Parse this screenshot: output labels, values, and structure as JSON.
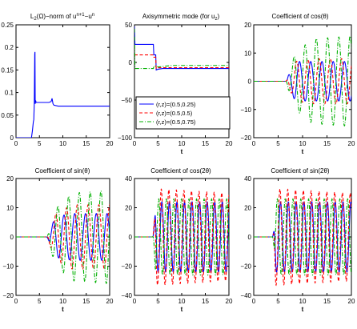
{
  "chart_data": [
    {
      "type": "line",
      "title": "L2(Ω)−norm of un+1−un",
      "title_parts": {
        "a": "L",
        "a_sub": "2",
        "b": "(Ω)−norm of u",
        "b_sup": "n+1",
        "c": "−u",
        "c_sup": "n"
      },
      "xlabel": "",
      "xlim": [
        0,
        20
      ],
      "ylim": [
        0,
        0.25
      ],
      "xticks": [
        "0",
        "5",
        "10",
        "15",
        "20"
      ],
      "yticks": [
        "0",
        "0.05",
        "0.1",
        "0.15",
        "0.2",
        "0.25"
      ],
      "series": [
        {
          "color": "#0000ff",
          "dash": "solid",
          "x": [
            0,
            3.3,
            3.5,
            3.7,
            3.8,
            3.9,
            4.0,
            4.05,
            4.1,
            4.15,
            4.2,
            4.25,
            4.3,
            5,
            6,
            7,
            7.5,
            7.7,
            7.9,
            8.1,
            9,
            12,
            15,
            20
          ],
          "y": [
            0,
            0,
            0.015,
            0.035,
            0.04,
            0.075,
            0.185,
            0.19,
            0.075,
            0.08,
            0.078,
            0.08,
            0.078,
            0.078,
            0.078,
            0.078,
            0.08,
            0.087,
            0.075,
            0.072,
            0.07,
            0.07,
            0.07,
            0.07
          ]
        }
      ]
    },
    {
      "type": "line",
      "title": "Axisymmetric mode (for uz)",
      "title_parts": {
        "a": "Axisymmetric mode (for u",
        "a_sub": "z",
        "b": ")"
      },
      "xlabel": "t",
      "xlim": [
        0,
        20
      ],
      "ylim": [
        -100,
        50
      ],
      "xticks": [
        "0",
        "5",
        "10",
        "15",
        "20"
      ],
      "yticks": [
        "−100",
        "−50",
        "0",
        "50"
      ],
      "legend": {
        "position": "lower-right",
        "entries": [
          "(r,z)=(0.5,0.25)",
          "(r,z)=(0.5,0.5)",
          "(r,z)=(0.5,0.75)"
        ]
      },
      "series": [
        {
          "name": "(r,z)=(0.5,0.25)",
          "color": "#0000ff",
          "dash": "solid",
          "x": [
            0,
            0.1,
            4.0,
            4.1,
            4.5,
            4.6,
            5.0,
            6.0,
            8.0,
            10,
            15,
            20
          ],
          "y": [
            48,
            24,
            24,
            10,
            10,
            -10,
            -9,
            -8,
            -8,
            -8,
            -8,
            -8
          ]
        },
        {
          "name": "(r,z)=(0.5,0.5)",
          "color": "#ff0000",
          "dash": "dashed",
          "x": [
            0,
            0.1,
            4.0,
            4.1,
            4.5,
            4.6,
            5.0,
            8.0,
            10,
            15,
            20
          ],
          "y": [
            10,
            10,
            10,
            7,
            7,
            -8,
            -7,
            -7,
            -7,
            -7,
            -7
          ]
        },
        {
          "name": "(r,z)=(0.5,0.75)",
          "color": "#00b000",
          "dash": "dashdot",
          "x": [
            0,
            0.1,
            4.0,
            4.1,
            4.6,
            5.0,
            8.0,
            10,
            15,
            20
          ],
          "y": [
            45,
            -8,
            -8,
            -5,
            -5,
            -6,
            -4,
            -4,
            -4,
            -4
          ]
        }
      ]
    },
    {
      "type": "line",
      "title": "Coefficient of cos(θ)",
      "xlabel": "t",
      "xlim": [
        0,
        20
      ],
      "ylim": [
        -20,
        20
      ],
      "xticks": [
        "0",
        "5",
        "10",
        "15",
        "20"
      ],
      "yticks": [
        "−20",
        "−10",
        "0",
        "10",
        "20"
      ],
      "series": [
        {
          "color": "#0000ff",
          "dash": "solid",
          "onset": 6.5,
          "period": 2.3,
          "phase": 0.0,
          "amp_points": [
            [
              6.5,
              0
            ],
            [
              8.5,
              7
            ],
            [
              12,
              7
            ],
            [
              20,
              7
            ]
          ]
        },
        {
          "color": "#ff0000",
          "dash": "dashed",
          "onset": 6.5,
          "period": 2.3,
          "phase": 1.6,
          "amp_points": [
            [
              6.5,
              0
            ],
            [
              8.5,
              7
            ],
            [
              12,
              8
            ],
            [
              20,
              8
            ]
          ]
        },
        {
          "color": "#00b000",
          "dash": "dashdot",
          "onset": 6.5,
          "period": 2.3,
          "phase": 3.14,
          "amp_points": [
            [
              6.5,
              0
            ],
            [
              8.5,
              10
            ],
            [
              12,
              15
            ],
            [
              20,
              16
            ]
          ]
        }
      ]
    },
    {
      "type": "line",
      "title": "Coefficient of sin(θ)",
      "xlabel": "t",
      "xlim": [
        0,
        20
      ],
      "ylim": [
        -20,
        20
      ],
      "xticks": [
        "0",
        "5",
        "10",
        "15",
        "20"
      ],
      "yticks": [
        "−20",
        "−10",
        "0",
        "10",
        "20"
      ],
      "series": [
        {
          "color": "#0000ff",
          "dash": "solid",
          "onset": 6.5,
          "period": 2.3,
          "phase": 3.9,
          "amp_points": [
            [
              6.5,
              0
            ],
            [
              8.5,
              7
            ],
            [
              12,
              8
            ],
            [
              20,
              8
            ]
          ]
        },
        {
          "color": "#ff0000",
          "dash": "dashed",
          "onset": 6.5,
          "period": 2.3,
          "phase": 2.4,
          "amp_points": [
            [
              6.5,
              0
            ],
            [
              8.5,
              8
            ],
            [
              12,
              11
            ],
            [
              20,
              11
            ]
          ]
        },
        {
          "color": "#00b000",
          "dash": "dashdot",
          "onset": 6.5,
          "period": 2.3,
          "phase": 1.2,
          "amp_points": [
            [
              6.5,
              0
            ],
            [
              8.5,
              10
            ],
            [
              12,
              15
            ],
            [
              20,
              16
            ]
          ]
        }
      ]
    },
    {
      "type": "line",
      "title": "Coefficient of cos(2θ)",
      "xlabel": "t",
      "xlim": [
        0,
        20
      ],
      "ylim": [
        -40,
        40
      ],
      "xticks": [
        "0",
        "5",
        "10",
        "15",
        "20"
      ],
      "yticks": [
        "−40",
        "−20",
        "0",
        "20",
        "40"
      ],
      "series": [
        {
          "color": "#0000ff",
          "dash": "solid",
          "onset": 3.8,
          "period": 1.6,
          "phase": 0.0,
          "amp_points": [
            [
              3.8,
              0
            ],
            [
              4.5,
              24
            ],
            [
              20,
              24
            ]
          ]
        },
        {
          "color": "#ff0000",
          "dash": "dashed",
          "onset": 3.8,
          "period": 1.6,
          "phase": 0.5,
          "amp_points": [
            [
              3.8,
              0
            ],
            [
              4.5,
              33
            ],
            [
              20,
              30
            ]
          ]
        },
        {
          "color": "#00b000",
          "dash": "dashdot",
          "onset": 3.8,
          "period": 1.6,
          "phase": 2.6,
          "amp_points": [
            [
              3.8,
              0
            ],
            [
              4.5,
              26
            ],
            [
              20,
              26
            ]
          ]
        }
      ]
    },
    {
      "type": "line",
      "title": "Coefficient of sin(2θ)",
      "xlabel": "t",
      "xlim": [
        0,
        20
      ],
      "ylim": [
        -40,
        40
      ],
      "xticks": [
        "0",
        "5",
        "10",
        "15",
        "20"
      ],
      "yticks": [
        "−40",
        "−20",
        "0",
        "20",
        "40"
      ],
      "series": [
        {
          "color": "#0000ff",
          "dash": "solid",
          "onset": 3.8,
          "period": 1.6,
          "phase": 1.2,
          "amp_points": [
            [
              3.8,
              0
            ],
            [
              4.5,
              24
            ],
            [
              20,
              24
            ]
          ]
        },
        {
          "color": "#ff0000",
          "dash": "dashed",
          "onset": 3.8,
          "period": 1.6,
          "phase": 1.7,
          "amp_points": [
            [
              3.8,
              0
            ],
            [
              4.5,
              33
            ],
            [
              20,
              30
            ]
          ]
        },
        {
          "color": "#00b000",
          "dash": "dashdot",
          "onset": 3.8,
          "period": 1.6,
          "phase": 3.8,
          "amp_points": [
            [
              3.8,
              0
            ],
            [
              4.5,
              26
            ],
            [
              20,
              26
            ]
          ]
        }
      ]
    }
  ]
}
